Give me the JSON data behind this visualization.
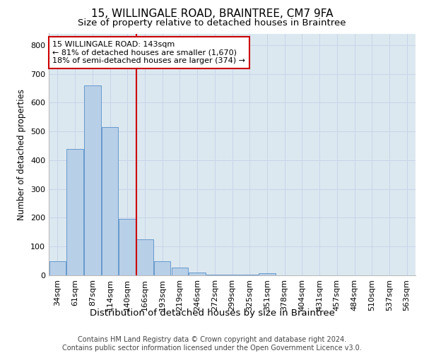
{
  "title1": "15, WILLINGALE ROAD, BRAINTREE, CM7 9FA",
  "title2": "Size of property relative to detached houses in Braintree",
  "xlabel": "Distribution of detached houses by size in Braintree",
  "ylabel": "Number of detached properties",
  "footer1": "Contains HM Land Registry data © Crown copyright and database right 2024.",
  "footer2": "Contains public sector information licensed under the Open Government Licence v3.0.",
  "categories": [
    "34sqm",
    "61sqm",
    "87sqm",
    "114sqm",
    "140sqm",
    "166sqm",
    "193sqm",
    "219sqm",
    "246sqm",
    "272sqm",
    "299sqm",
    "325sqm",
    "351sqm",
    "378sqm",
    "404sqm",
    "431sqm",
    "457sqm",
    "484sqm",
    "510sqm",
    "537sqm",
    "563sqm"
  ],
  "values": [
    50,
    440,
    660,
    515,
    195,
    125,
    50,
    27,
    10,
    3,
    3,
    3,
    8,
    0,
    0,
    0,
    0,
    0,
    0,
    0,
    0
  ],
  "bar_color": "#b8cfe8",
  "bar_edge_color": "#6699cc",
  "bar_width": 0.95,
  "vline_color": "#cc0000",
  "vline_x_index": 4.5,
  "annotation_title": "15 WILLINGALE ROAD: 143sqm",
  "annotation_line1": "← 81% of detached houses are smaller (1,670)",
  "annotation_line2": "18% of semi-detached houses are larger (374) →",
  "annotation_box_color": "#ffffff",
  "annotation_border_color": "#cc0000",
  "ylim": [
    0,
    840
  ],
  "yticks": [
    0,
    100,
    200,
    300,
    400,
    500,
    600,
    700,
    800
  ],
  "grid_color": "#c8d4e8",
  "bg_color": "#dce8f0",
  "title1_fontsize": 11,
  "title2_fontsize": 9.5,
  "xlabel_fontsize": 9.5,
  "ylabel_fontsize": 8.5,
  "tick_fontsize": 8,
  "ann_fontsize": 8,
  "footer_fontsize": 7
}
